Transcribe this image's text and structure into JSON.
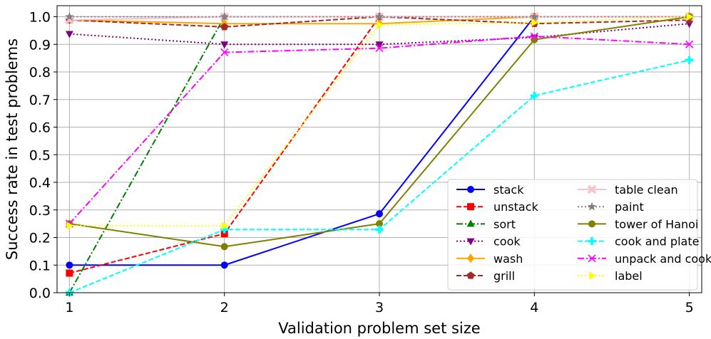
{
  "chart_data": {
    "type": "line",
    "title": "",
    "xlabel": "Validation problem set size",
    "ylabel": "Success rate in test problems",
    "x": [
      1,
      2,
      3,
      4,
      5
    ],
    "xlim": [
      0.92,
      5.08
    ],
    "ylim": [
      0.0,
      1.04
    ],
    "xticks": [
      "1",
      "2",
      "3",
      "4",
      "5"
    ],
    "yticks": [
      "0.0",
      "0.1",
      "0.2",
      "0.3",
      "0.4",
      "0.5",
      "0.6",
      "0.7",
      "0.8",
      "0.9",
      "1.0"
    ],
    "grid": true,
    "legend_position": "lower-right",
    "series": [
      {
        "name": "stack",
        "color": "#0000ff",
        "dash": "solid",
        "marker": "circle",
        "values": [
          0.1,
          0.1,
          0.286,
          1.0,
          1.0
        ]
      },
      {
        "name": "unstack",
        "color": "#ff0000",
        "dash": "dashed",
        "marker": "square",
        "values": [
          0.071,
          0.214,
          1.0,
          1.0,
          1.0
        ]
      },
      {
        "name": "sort",
        "color": "#007f00",
        "dash": "dashdot",
        "marker": "triangle-up",
        "values": [
          0.0,
          1.0,
          1.0,
          1.0,
          1.0
        ]
      },
      {
        "name": "cook",
        "color": "#7f007f",
        "dash": "dotted",
        "marker": "triangle-down",
        "values": [
          0.938,
          0.9,
          0.9,
          0.925,
          0.975
        ]
      },
      {
        "name": "wash",
        "color": "#ffa500",
        "dash": "solid",
        "marker": "diamond",
        "values": [
          0.988,
          0.975,
          0.975,
          1.0,
          1.0
        ]
      },
      {
        "name": "grill",
        "color": "#a52a2a",
        "dash": "dashed",
        "marker": "pentagon",
        "values": [
          0.988,
          0.963,
          1.0,
          0.975,
          0.988
        ]
      },
      {
        "name": "table clean",
        "color": "#ffc0cb",
        "dash": "solid",
        "marker": "x-thick",
        "values": [
          0.988,
          1.0,
          1.0,
          1.0,
          1.0
        ]
      },
      {
        "name": "paint",
        "color": "#808080",
        "dash": "dotted",
        "marker": "star",
        "values": [
          1.0,
          1.0,
          1.0,
          1.0,
          1.0
        ]
      },
      {
        "name": "tower of Hanoi",
        "color": "#808000",
        "dash": "solid",
        "marker": "circle",
        "values": [
          0.25,
          0.167,
          0.25,
          0.917,
          1.0
        ]
      },
      {
        "name": "cook and plate",
        "color": "#00ffff",
        "dash": "dashed",
        "marker": "plus-thick",
        "values": [
          0.0,
          0.229,
          0.229,
          0.714,
          0.843
        ]
      },
      {
        "name": "unpack and cook",
        "color": "#ff00ff",
        "dash": "dashdot",
        "marker": "x",
        "values": [
          0.25,
          0.871,
          0.886,
          0.929,
          0.9
        ]
      },
      {
        "name": "label",
        "color": "#ffff00",
        "dash": "dotted",
        "marker": "triangle-right",
        "values": [
          0.243,
          0.243,
          0.971,
          0.979,
          1.0
        ]
      }
    ]
  }
}
